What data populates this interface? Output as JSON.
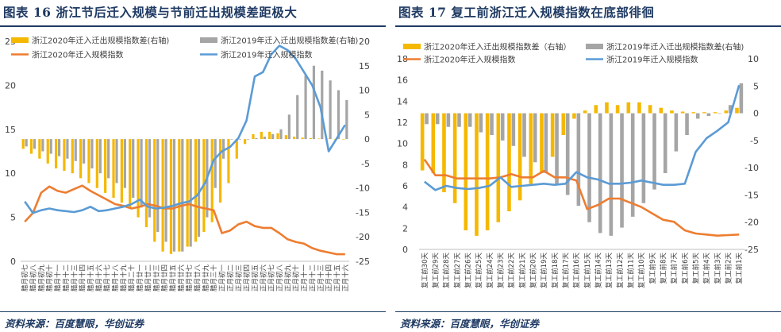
{
  "panels": [
    {
      "title": "图表 16   浙江节后迁入规模与节前迁出规模差距极大",
      "source": "资料来源：百度慧眼，华创证券"
    },
    {
      "title": "图表 17   复工前浙江迁入规模指数在底部徘徊",
      "source": "资料来源：百度慧眼，华创证券"
    }
  ],
  "colors": {
    "orange_bar": "#f5b800",
    "gray_bar": "#a5a5a5",
    "orange_line": "#ed7d31",
    "blue_line": "#5b9bd5",
    "title_navy": "#1f3a63"
  },
  "chart_data": [
    {
      "type": "bar+line",
      "categories": [
        "腊月初七",
        "腊月初八",
        "腊月初九",
        "腊月初十",
        "腊月十一",
        "腊月十二",
        "腊月十三",
        "腊月十四",
        "腊月十五",
        "腊月十六",
        "腊月十七",
        "腊月十八",
        "腊月十九",
        "腊月二十",
        "腊月廿一",
        "腊月廿二",
        "腊月廿三",
        "腊月廿四",
        "腊月廿五",
        "腊月廿六",
        "腊月廿七",
        "腊月廿八",
        "腊月廿九",
        "腊月三十",
        "正月初一",
        "正月初二",
        "正月初三",
        "正月初四",
        "正月初五",
        "正月初六",
        "正月初七",
        "正月初八",
        "正月初九",
        "正月初十",
        "正月十一",
        "正月十二",
        "正月十三",
        "正月十四",
        "正月十五",
        "正月十六"
      ],
      "bar_series": [
        {
          "name": "浙江2020年迁入迁出规模指数差(右轴)",
          "values": [
            -2,
            -3,
            -4,
            -5,
            -6,
            -6.5,
            -7,
            -8,
            -9,
            -10,
            -11,
            -12,
            -13,
            -14,
            -16,
            -18,
            -21,
            -23,
            -23.5,
            -23,
            -22,
            -21,
            -19,
            -17,
            -13,
            -9,
            -4,
            -1,
            1,
            1.5,
            1.5,
            1.2,
            0.8,
            0.5,
            0.3,
            0.2,
            0.1,
            0.1,
            0,
            0
          ],
          "axis": "right"
        },
        {
          "name": "浙江2019年迁入迁出规模指数差(右轴)",
          "values": [
            -1.5,
            -2,
            -2.5,
            -3,
            -3.5,
            -4,
            -4.5,
            -5,
            -6,
            -7,
            -8,
            -9,
            -10,
            -12,
            -14,
            -16,
            -19,
            -21,
            -23,
            -23,
            -22,
            -20,
            -16,
            -10,
            -4,
            0,
            0,
            0,
            0.2,
            0.5,
            1,
            2,
            5,
            9,
            13,
            15,
            14,
            12,
            10,
            8
          ],
          "axis": "right"
        }
      ],
      "line_series": [
        {
          "name": "浙江2020年迁入规模指数",
          "values": [
            4.5,
            5.5,
            7.8,
            8.5,
            8.0,
            7.8,
            8.2,
            8.6,
            8.0,
            7.5,
            7.0,
            6.5,
            6.3,
            6.0,
            6.2,
            6.5,
            6.3,
            6.0,
            6.0,
            6.3,
            6.5,
            6.2,
            6.0,
            5.8,
            3.2,
            3.5,
            4.2,
            4.5,
            4.0,
            3.8,
            3.8,
            3.2,
            2.5,
            2.2,
            2.0,
            1.5,
            1.2,
            1.0,
            0.8,
            0.8
          ],
          "axis": "left"
        },
        {
          "name": "浙江2019年迁入规模指数",
          "values": [
            6.8,
            5.5,
            5.8,
            6.0,
            5.8,
            5.7,
            5.6,
            5.8,
            6.2,
            5.7,
            5.8,
            6.0,
            6.2,
            6.5,
            7.0,
            6.2,
            6.0,
            6.1,
            6.3,
            6.6,
            6.8,
            7.5,
            9.0,
            11.5,
            12.5,
            13.0,
            14.0,
            16.0,
            21.0,
            21.5,
            23.5,
            24.5,
            24.0,
            23.0,
            21.5,
            20.0,
            17.5,
            12.5,
            14.0,
            15.5
          ],
          "axis": "left"
        }
      ],
      "y_left": {
        "range": [
          0,
          25
        ],
        "ticks": [
          0,
          5,
          10,
          15,
          20,
          25
        ]
      },
      "y_right": {
        "range": [
          -25,
          20
        ],
        "ticks": [
          -25,
          -20,
          -15,
          -10,
          -5,
          0,
          5,
          10,
          15,
          20
        ]
      },
      "legend": "top"
    },
    {
      "type": "bar+line",
      "categories": [
        "复工前30天",
        "复工前29天",
        "复工前28天",
        "复工前27天",
        "复工前26天",
        "复工前25天",
        "复工前24天",
        "复工前23天",
        "复工前22天",
        "复工前21天",
        "复工前20天",
        "复工前19天",
        "复工前18天",
        "复工前17天",
        "复工前16天",
        "复工前15天",
        "复工前14天",
        "复工前13天",
        "复工前12天",
        "复工前11天",
        "复工前10天",
        "复工前9天",
        "复工前8天",
        "复工前7天",
        "复工前6天",
        "复工前5天",
        "复工前4天",
        "复工前3天",
        "复工前2天",
        "复工前1天"
      ],
      "bar_series": [
        {
          "name": "浙江2020年迁入迁出规模指数差（右轴）",
          "values": [
            -10.5,
            -11,
            -14.5,
            -16.5,
            -21.5,
            -22.5,
            -21.5,
            -20,
            -18,
            -16,
            -13,
            -11,
            -8,
            -4,
            -1,
            0.5,
            1.5,
            2,
            1.5,
            2,
            2,
            1.5,
            1,
            0.5,
            0.3,
            0.2,
            0.2,
            0.2,
            0.5,
            1
          ],
          "axis": "right"
        },
        {
          "name": "浙江2019年迁入迁出规模指数差(右轴)",
          "values": [
            -2,
            -2,
            -2.5,
            -2.5,
            -2.5,
            -3.5,
            -4,
            -5,
            -6,
            -8,
            -9,
            -11,
            -13,
            -15,
            -17,
            -20,
            -22,
            -22.5,
            -21,
            -19,
            -16.5,
            -14,
            -11,
            -7,
            -4,
            -1,
            -0.5,
            0,
            1.5,
            5.5
          ],
          "axis": "right"
        }
      ],
      "line_series": [
        {
          "name": "浙江2020年迁入规模指数",
          "values": [
            8.5,
            7.0,
            7.0,
            6.7,
            6.7,
            6.7,
            6.7,
            6.8,
            7.1,
            6.8,
            6.8,
            7.4,
            6.8,
            6.8,
            6.5,
            3.8,
            4.2,
            4.8,
            4.8,
            4.4,
            4.0,
            3.4,
            2.8,
            2.6,
            1.8,
            1.5,
            1.4,
            1.3,
            1.35,
            1.4
          ],
          "axis": "left"
        },
        {
          "name": "浙江2019年迁入规模指数",
          "values": [
            6.4,
            5.6,
            6.0,
            5.8,
            5.7,
            5.8,
            6.0,
            6.8,
            5.9,
            6.0,
            6.1,
            6.2,
            6.1,
            6.2,
            7.3,
            6.8,
            6.6,
            6.2,
            6.2,
            6.3,
            6.5,
            6.3,
            6.1,
            6.1,
            6.2,
            9.2,
            10.5,
            11.2,
            12.0,
            15.5
          ],
          "axis": "left"
        }
      ],
      "y_left": {
        "range": [
          0,
          18
        ],
        "ticks": [
          0,
          2,
          4,
          6,
          8,
          10,
          12,
          14,
          16,
          18
        ]
      },
      "y_right": {
        "range": [
          -25,
          10
        ],
        "ticks": [
          -25,
          -20,
          -15,
          -10,
          -5,
          0,
          5,
          10
        ]
      },
      "legend": "top"
    }
  ]
}
